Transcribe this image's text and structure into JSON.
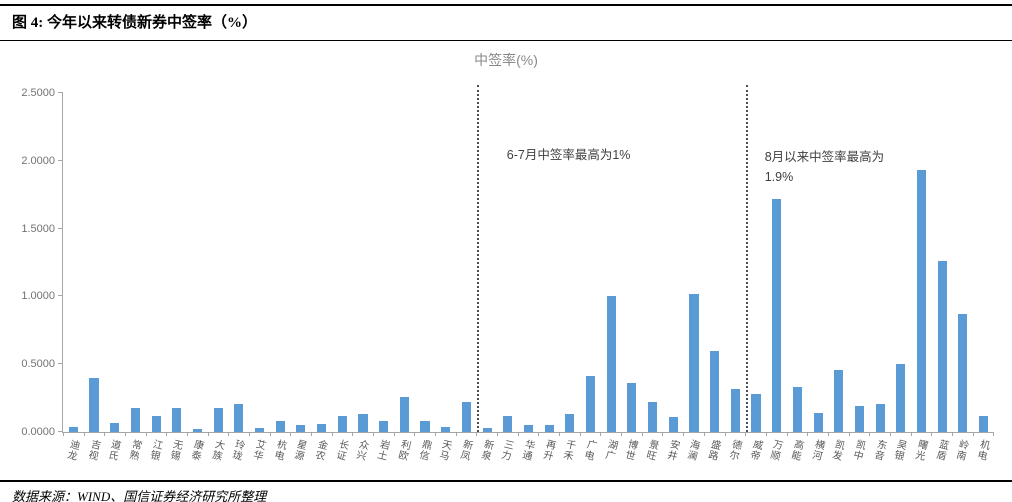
{
  "header": {
    "figure_title": "图 4: 今年以来转债新券中签率（%）"
  },
  "chart_data": {
    "type": "bar",
    "title": "中签率(%)",
    "categories": [
      "迪龙",
      "吉视",
      "道氏",
      "常熟",
      "江银",
      "无锡",
      "康泰",
      "大族",
      "玲珑",
      "艾华",
      "杭电",
      "星源",
      "金农",
      "长证",
      "众兴",
      "岩土",
      "利欧",
      "鼎信",
      "天马",
      "新凤",
      "新泉",
      "三力",
      "华通",
      "再升",
      "千禾",
      "广电",
      "湖广",
      "博世",
      "景旺",
      "安井",
      "海澜",
      "盛路",
      "德尔",
      "威帝",
      "万顺",
      "高能",
      "横河",
      "凯发",
      "凯中",
      "东音",
      "吴银",
      "曙光",
      "蓝盾",
      "岭南",
      "机电"
    ],
    "values": [
      0.04,
      0.4,
      0.07,
      0.18,
      0.12,
      0.18,
      0.02,
      0.18,
      0.21,
      0.03,
      0.08,
      0.05,
      0.06,
      0.12,
      0.13,
      0.08,
      0.26,
      0.08,
      0.04,
      0.22,
      0.03,
      0.12,
      0.05,
      0.05,
      0.13,
      0.41,
      1.0,
      0.36,
      0.22,
      0.11,
      1.02,
      0.6,
      0.32,
      0.28,
      1.72,
      0.33,
      0.14,
      0.46,
      0.19,
      0.21,
      0.5,
      1.93,
      1.26,
      0.87,
      0.12
    ],
    "ylim": [
      0,
      2.5
    ],
    "ytick_labels": [
      "0.0000",
      "0.5000",
      "1.0000",
      "1.5000",
      "2.0000",
      "2.5000"
    ],
    "grid": false,
    "legend": false,
    "bar_color": "#5b9bd5",
    "dividers": [
      {
        "after_index": 19,
        "after_category": "新凤"
      },
      {
        "after_index": 32,
        "after_category": "德尔"
      }
    ],
    "annotations": [
      {
        "lines": [
          "6-7月中签率最高为1%"
        ]
      },
      {
        "lines": [
          "8月以来中签率最高为",
          "1.9%"
        ]
      }
    ]
  },
  "footer": {
    "source": "数据来源：WIND、国信证券经济研究所整理"
  }
}
